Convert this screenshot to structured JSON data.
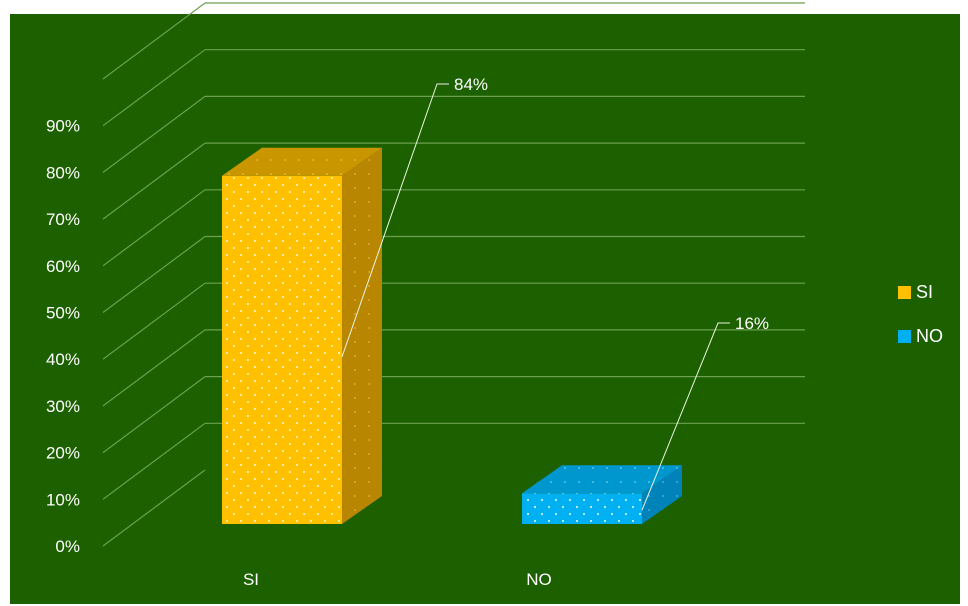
{
  "chart_data": {
    "type": "bar",
    "categories": [
      "SI",
      "NO"
    ],
    "series": [
      {
        "name": "SI",
        "values": [
          84,
          null
        ],
        "color": "#ffc000"
      },
      {
        "name": "NO",
        "values": [
          null,
          16
        ],
        "color": "#00b0f0"
      }
    ],
    "data_labels": [
      "84%",
      "16%"
    ],
    "yticks": [
      "0%",
      "10%",
      "20%",
      "30%",
      "40%",
      "50%",
      "60%",
      "70%",
      "80%",
      "90%"
    ],
    "ylim": [
      0,
      100
    ],
    "grid": true,
    "legend": {
      "position": "right",
      "entries": [
        "SI",
        "NO"
      ]
    },
    "style": "3d-column",
    "background": "#1c6000"
  }
}
